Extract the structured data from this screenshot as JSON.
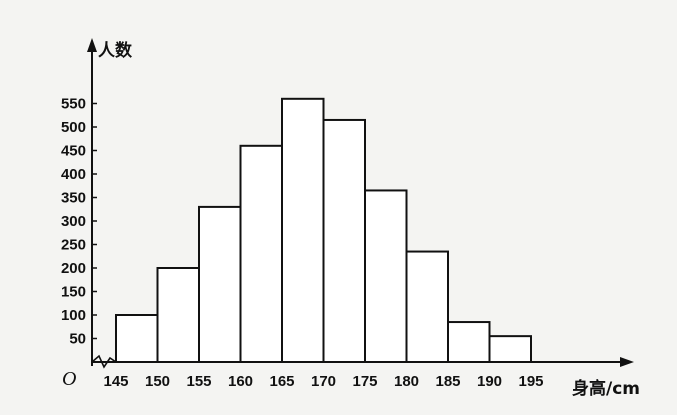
{
  "chart_data": {
    "type": "bar",
    "bin_edges": [
      145,
      150,
      155,
      160,
      165,
      170,
      175,
      180,
      185,
      190,
      195
    ],
    "categories": [
      "145-150",
      "150-155",
      "155-160",
      "160-165",
      "165-170",
      "170-175",
      "175-180",
      "180-185",
      "185-190",
      "190-195"
    ],
    "values": [
      100,
      200,
      330,
      460,
      560,
      515,
      365,
      235,
      85,
      55
    ],
    "x_ticks": [
      "145",
      "150",
      "155",
      "160",
      "165",
      "170",
      "175",
      "180",
      "185",
      "190",
      "195"
    ],
    "y_ticks": [
      "50",
      "100",
      "150",
      "200",
      "250",
      "300",
      "350",
      "400",
      "450",
      "500",
      "550"
    ],
    "ylabel": "人数",
    "xlabel": "身高/cm",
    "origin_label": "O",
    "ylim": [
      0,
      600
    ],
    "xlim": [
      145,
      195
    ],
    "grid": false,
    "bar_fill": "#ffffff",
    "line_color": "#111111"
  }
}
